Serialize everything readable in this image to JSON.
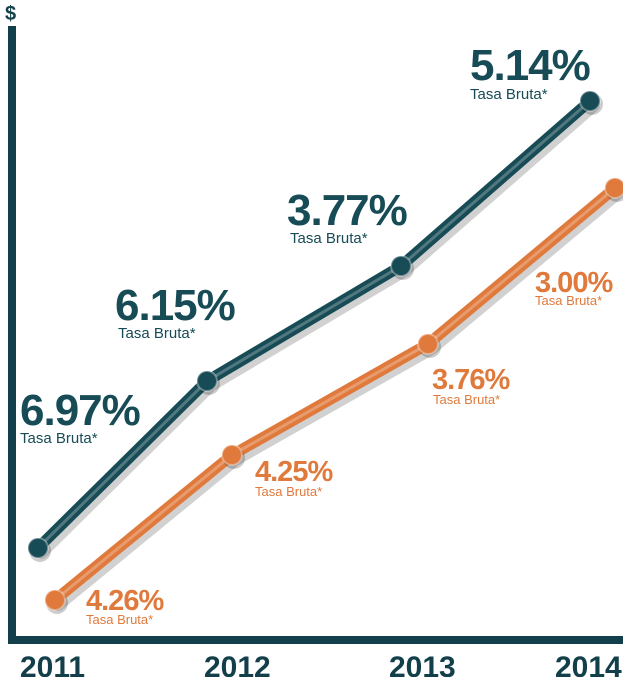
{
  "chart_data": {
    "type": "line",
    "y_axis_label": "$",
    "categories": [
      "2011",
      "2012",
      "2013",
      "2014"
    ],
    "series": [
      {
        "color": "#174b55",
        "point_labels": [
          "6.97%",
          "6.15%",
          "3.77%",
          "5.14%"
        ],
        "point_sublabels": [
          "Tasa Bruta*",
          "Tasa Bruta*",
          "Tasa Bruta*",
          "Tasa Bruta*"
        ]
      },
      {
        "color": "#e07a3c",
        "point_labels": [
          "4.26%",
          "4.25%",
          "3.76%",
          "3.00%"
        ],
        "point_sublabels": [
          "Tasa Bruta*",
          "Tasa Bruta*",
          "Tasa Bruta*",
          "Tasa Bruta*"
        ]
      }
    ],
    "grid": false,
    "legend": "none"
  }
}
